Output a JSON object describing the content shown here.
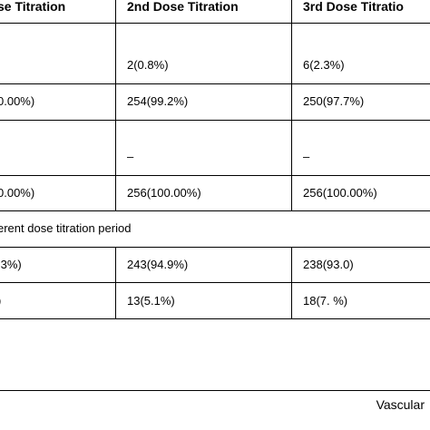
{
  "table": {
    "headers": [
      "se Titration",
      "2nd Dose Titration",
      "3rd Dose Titratio"
    ],
    "rows": [
      [
        "",
        "2(0.8%)",
        "6(2.3%)"
      ],
      [
        "0.00%)",
        "254(99.2%)",
        "250(97.7%)"
      ],
      [
        "",
        "–",
        "–"
      ],
      [
        "0.00%)",
        "256(100.00%)",
        "256(100.00%)"
      ],
      [
        "erent dose titration period"
      ],
      [
        ".3%)",
        "243(94.9%)",
        "238(93.0)"
      ],
      [
        ")",
        "13(5.1%)",
        "18(7. %)"
      ]
    ]
  },
  "footer": {
    "text": "Vascular"
  }
}
